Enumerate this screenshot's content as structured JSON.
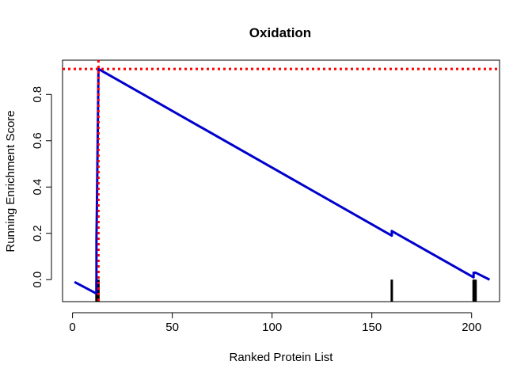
{
  "chart_data": {
    "type": "line",
    "title": "Oxidation",
    "xlabel": "Ranked Protein List",
    "ylabel": "Running Enrichment Score",
    "xlim": [
      -5,
      214
    ],
    "ylim": [
      -0.095,
      0.948
    ],
    "x_ticks": [
      0,
      50,
      100,
      150,
      200
    ],
    "y_ticks": [
      0.0,
      0.2,
      0.4,
      0.6,
      0.8
    ],
    "y_tick_labels": [
      "0.0",
      "0.2",
      "0.4",
      "0.6",
      "0.8"
    ],
    "grid": false,
    "series": [
      {
        "x": [
          1,
          12,
          12,
          12.2,
          12.4,
          12.6,
          12.8,
          13,
          160,
          160,
          201,
          201,
          202,
          209
        ],
        "y": [
          -0.01,
          -0.06,
          0.18,
          0.3,
          0.45,
          0.6,
          0.75,
          0.91,
          0.19,
          0.21,
          0.01,
          0.03,
          0.03,
          0.0
        ],
        "color": "#0000cd"
      }
    ],
    "hit_positions": [
      12,
      13,
      160,
      201,
      202
    ],
    "hit_tick_range": [
      -0.095,
      0.0
    ],
    "max_score_position": 13,
    "max_score": 0.91,
    "reference_line_color": "#ff0000",
    "series_color": "#0000cd",
    "hit_color": "#000000"
  }
}
